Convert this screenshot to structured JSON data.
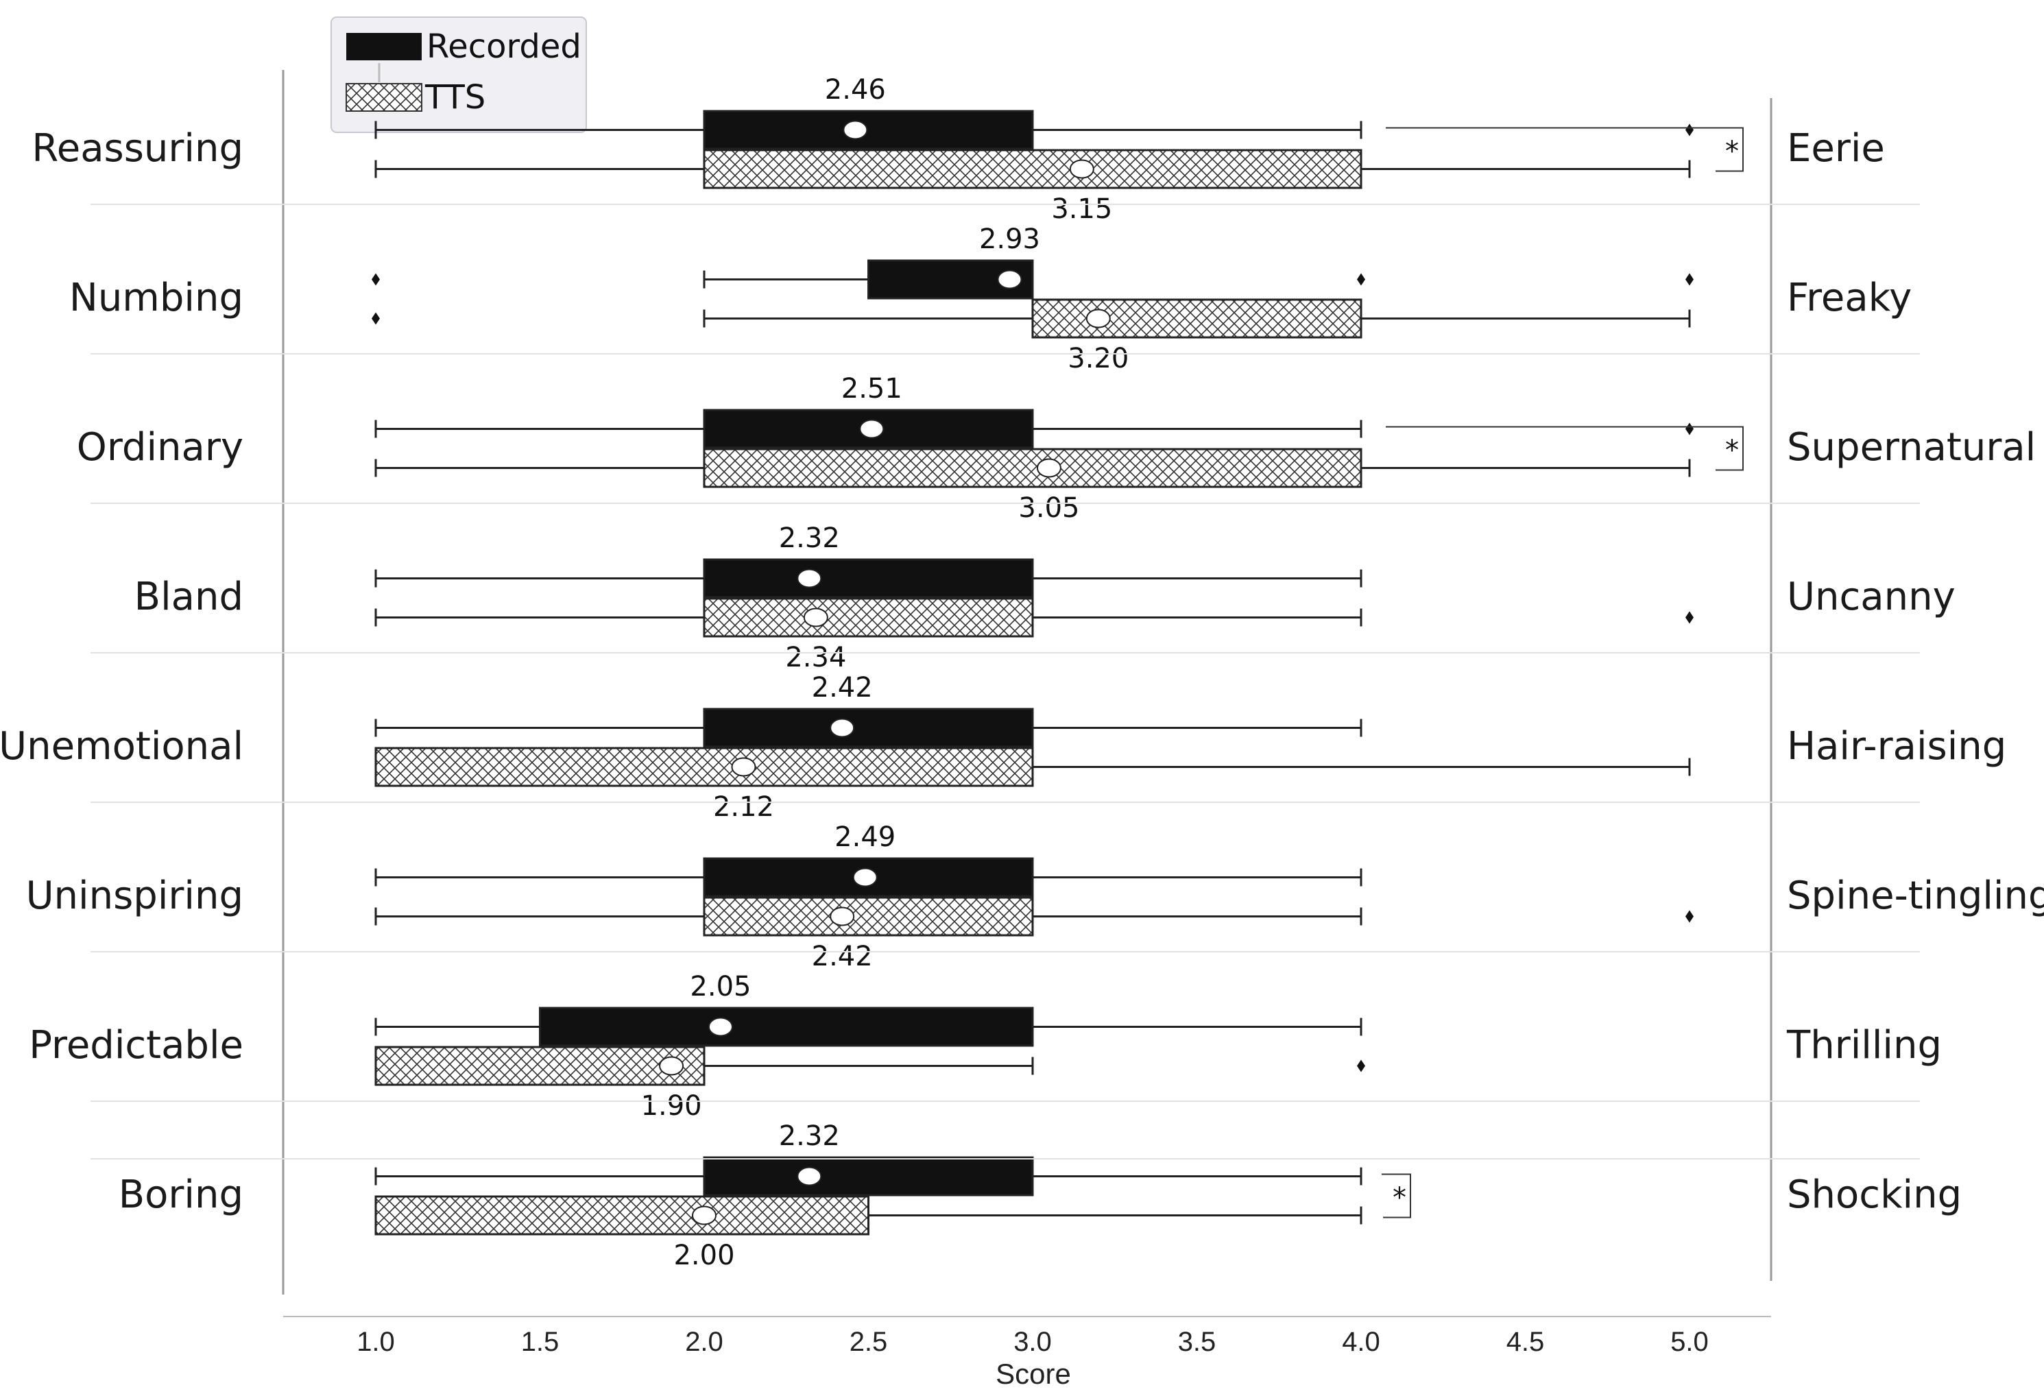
{
  "chart_data": {
    "type": "boxplot",
    "orientation": "horizontal",
    "xlabel": "Score",
    "xlim": [
      1.0,
      5.0
    ],
    "xticks": [
      "1.0",
      "1.5",
      "2.0",
      "2.5",
      "3.0",
      "3.5",
      "4.0",
      "4.5",
      "5.0"
    ],
    "xtick_values": [
      1.0,
      1.5,
      2.0,
      2.5,
      3.0,
      3.5,
      4.0,
      4.5,
      5.0
    ],
    "grid": false,
    "legend": {
      "placement": "top-left",
      "entries": [
        {
          "label": "Recorded",
          "fill": "#111111"
        },
        {
          "label": "TTS",
          "fill": "crosshatch"
        }
      ]
    },
    "series_names": [
      "Recorded",
      "TTS"
    ],
    "rows": [
      {
        "left": "Reassuring",
        "right": "Eerie",
        "significant": true,
        "sig_mark": "*",
        "recorded": {
          "whisker_low": 1.0,
          "q1": 2.0,
          "q3": 3.0,
          "whisker_high": 4.0,
          "mean": 2.46,
          "mean_label": "2.46",
          "outliers": [
            5.0
          ]
        },
        "tts": {
          "whisker_low": 1.0,
          "q1": 2.0,
          "q3": 4.0,
          "whisker_high": 5.0,
          "mean": 3.15,
          "mean_label": "3.15",
          "outliers": []
        }
      },
      {
        "left": "Numbing",
        "right": "Freaky",
        "significant": false,
        "sig_mark": "",
        "recorded": {
          "whisker_low": 2.0,
          "q1": 2.5,
          "q3": 3.0,
          "whisker_high": 3.0,
          "mean": 2.93,
          "mean_label": "2.93",
          "outliers": [
            1.0,
            4.0,
            5.0
          ]
        },
        "tts": {
          "whisker_low": 2.0,
          "q1": 3.0,
          "q3": 4.0,
          "whisker_high": 5.0,
          "mean": 3.2,
          "mean_label": "3.20",
          "outliers": [
            1.0
          ]
        }
      },
      {
        "left": "Ordinary",
        "right": "Supernatural",
        "significant": true,
        "sig_mark": "*",
        "recorded": {
          "whisker_low": 1.0,
          "q1": 2.0,
          "q3": 3.0,
          "whisker_high": 4.0,
          "mean": 2.51,
          "mean_label": "2.51",
          "outliers": [
            5.0
          ]
        },
        "tts": {
          "whisker_low": 1.0,
          "q1": 2.0,
          "q3": 4.0,
          "whisker_high": 5.0,
          "mean": 3.05,
          "mean_label": "3.05",
          "outliers": []
        }
      },
      {
        "left": "Bland",
        "right": "Uncanny",
        "significant": false,
        "sig_mark": "",
        "recorded": {
          "whisker_low": 1.0,
          "q1": 2.0,
          "q3": 3.0,
          "whisker_high": 4.0,
          "mean": 2.32,
          "mean_label": "2.32",
          "outliers": []
        },
        "tts": {
          "whisker_low": 1.0,
          "q1": 2.0,
          "q3": 3.0,
          "whisker_high": 4.0,
          "mean": 2.34,
          "mean_label": "2.34",
          "outliers": [
            5.0
          ]
        }
      },
      {
        "left": "Unemotional",
        "right": "Hair-raising",
        "significant": false,
        "sig_mark": "",
        "recorded": {
          "whisker_low": 1.0,
          "q1": 2.0,
          "q3": 3.0,
          "whisker_high": 4.0,
          "mean": 2.42,
          "mean_label": "2.42",
          "outliers": []
        },
        "tts": {
          "whisker_low": 1.0,
          "q1": 1.0,
          "q3": 3.0,
          "whisker_high": 5.0,
          "mean": 2.12,
          "mean_label": "2.12",
          "outliers": []
        }
      },
      {
        "left": "Uninspiring",
        "right": "Spine-tingling",
        "significant": false,
        "sig_mark": "",
        "recorded": {
          "whisker_low": 1.0,
          "q1": 2.0,
          "q3": 3.0,
          "whisker_high": 4.0,
          "mean": 2.49,
          "mean_label": "2.49",
          "outliers": []
        },
        "tts": {
          "whisker_low": 1.0,
          "q1": 2.0,
          "q3": 3.0,
          "whisker_high": 4.0,
          "mean": 2.42,
          "mean_label": "2.42",
          "outliers": [
            5.0
          ]
        }
      },
      {
        "left": "Predictable",
        "right": "Thrilling",
        "significant": false,
        "sig_mark": "",
        "recorded": {
          "whisker_low": 1.0,
          "q1": 1.5,
          "q3": 3.0,
          "whisker_high": 4.0,
          "mean": 2.05,
          "mean_label": "2.05",
          "outliers": []
        },
        "tts": {
          "whisker_low": 1.0,
          "q1": 1.0,
          "q3": 2.0,
          "whisker_high": 3.0,
          "mean": 1.9,
          "mean_label": "1.90",
          "outliers": [
            4.0
          ]
        }
      },
      {
        "left": "Boring",
        "right": "Shocking",
        "significant": true,
        "sig_mark": "*",
        "recorded": {
          "whisker_low": 1.0,
          "q1": 2.0,
          "q3": 3.0,
          "whisker_high": 4.0,
          "mean": 2.32,
          "mean_label": "2.32",
          "outliers": []
        },
        "tts": {
          "whisker_low": 1.0,
          "q1": 1.0,
          "q3": 2.5,
          "whisker_high": 4.0,
          "mean": 2.0,
          "mean_label": "2.00",
          "outliers": []
        }
      }
    ]
  }
}
